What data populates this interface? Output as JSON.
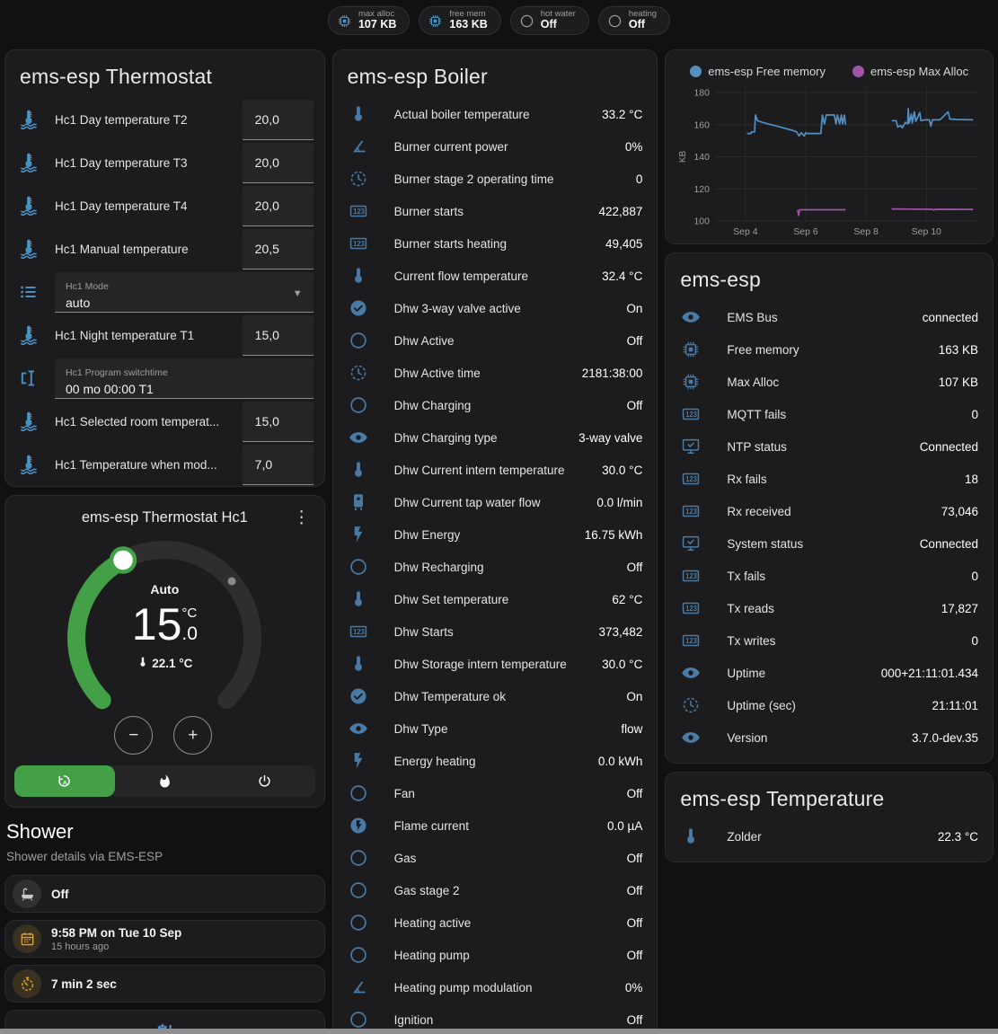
{
  "colors": {
    "accent_green": "#43a047",
    "icon_blue": "#4a7ba6",
    "thermostat_icon_blue": "#4b90c4",
    "badge_chip_blue": "#33a1e0",
    "amber": "#dfa431",
    "snowflake_blue": "#5590c8",
    "track_gray": "#2e2e2e"
  },
  "top_badges": [
    {
      "label": "max alloc",
      "value": "107 KB",
      "icon": "chip",
      "icon_color": "#33a1e0"
    },
    {
      "label": "free mem",
      "value": "163 KB",
      "icon": "chip",
      "icon_color": "#33a1e0"
    },
    {
      "label": "hot water",
      "value": "Off",
      "icon": "circle-outline",
      "icon_color": "#9a9a9a"
    },
    {
      "label": "heating",
      "value": "Off",
      "icon": "circle-outline",
      "icon_color": "#9a9a9a"
    }
  ],
  "thermostat": {
    "title": "ems-esp Thermostat",
    "rows": [
      {
        "type": "number",
        "icon": "thermometer-water",
        "label": "Hc1 Day temperature T2",
        "value": "20,0"
      },
      {
        "type": "number",
        "icon": "thermometer-water",
        "label": "Hc1 Day temperature T3",
        "value": "20,0"
      },
      {
        "type": "number",
        "icon": "thermometer-water",
        "label": "Hc1 Day temperature T4",
        "value": "20,0"
      },
      {
        "type": "number",
        "icon": "thermometer-water",
        "label": "Hc1 Manual temperature",
        "value": "20,5"
      },
      {
        "type": "select",
        "icon": "format-list",
        "label": "Hc1 Mode",
        "value": "auto"
      },
      {
        "type": "number",
        "icon": "thermometer-water",
        "label": "Hc1 Night temperature T1",
        "value": "15,0"
      },
      {
        "type": "text",
        "icon": "valve",
        "label": "Hc1 Program switchtime",
        "value": "00 mo 00:00 T1"
      },
      {
        "type": "number",
        "icon": "thermometer-water",
        "label": "Hc1 Selected room temperat...",
        "value": "15,0"
      },
      {
        "type": "number",
        "icon": "thermometer-water",
        "label": "Hc1 Temperature when mod...",
        "value": "7,0"
      }
    ]
  },
  "dial": {
    "title": "ems-esp Thermostat Hc1",
    "mode_label": "Auto",
    "target_main": "15",
    "target_frac": ".0",
    "target_unit": "°C",
    "current": "22.1 °C",
    "minus_label": "−",
    "plus_label": "+",
    "modes": [
      {
        "name": "auto",
        "icon": "auto",
        "selected": true
      },
      {
        "name": "heat",
        "icon": "flame",
        "selected": false
      },
      {
        "name": "off",
        "icon": "power",
        "selected": false
      }
    ]
  },
  "shower": {
    "title": "Shower",
    "subtitle": "Shower details via EMS-ESP",
    "tiles": [
      {
        "icon": "bathtub",
        "icon_color": "#c9c9c9",
        "icon_bg": "rgba(170,170,170,0.14)",
        "primary": "Off"
      },
      {
        "icon": "calendar",
        "icon_color": "#dfa431",
        "icon_bg": "rgba(223,164,49,0.16)",
        "primary": "9:58 PM on Tue 10 Sep",
        "secondary": "15 hours ago"
      },
      {
        "icon": "timer",
        "icon_color": "#dfa431",
        "icon_bg": "rgba(223,164,49,0.16)",
        "primary": "7 min 2 sec"
      },
      {
        "icon": "snowflake-alert",
        "icon_color": "#5590c8",
        "center": true
      }
    ]
  },
  "boiler": {
    "title": "ems-esp Boiler",
    "rows": [
      {
        "icon": "thermometer",
        "label": "Actual boiler temperature",
        "value": "33.2 °C"
      },
      {
        "icon": "angle-acute",
        "label": "Burner current power",
        "value": "0%"
      },
      {
        "icon": "clock",
        "label": "Burner stage 2 operating time",
        "value": "0"
      },
      {
        "icon": "counter",
        "label": "Burner starts",
        "value": "422,887"
      },
      {
        "icon": "counter",
        "label": "Burner starts heating",
        "value": "49,405"
      },
      {
        "icon": "thermometer",
        "label": "Current flow temperature",
        "value": "32.4 °C"
      },
      {
        "icon": "check-circle",
        "label": "Dhw 3-way valve active",
        "value": "On"
      },
      {
        "icon": "circle-outline",
        "label": "Dhw Active",
        "value": "Off"
      },
      {
        "icon": "clock",
        "label": "Dhw Active time",
        "value": "2181:38:00"
      },
      {
        "icon": "circle-outline",
        "label": "Dhw Charging",
        "value": "Off"
      },
      {
        "icon": "eye",
        "label": "Dhw Charging type",
        "value": "3-way valve"
      },
      {
        "icon": "thermometer",
        "label": "Dhw Current intern temperature",
        "value": "30.0 °C"
      },
      {
        "icon": "water-boiler",
        "label": "Dhw Current tap water flow",
        "value": "0.0 l/min"
      },
      {
        "icon": "flash",
        "label": "Dhw Energy",
        "value": "16.75 kWh"
      },
      {
        "icon": "circle-outline",
        "label": "Dhw Recharging",
        "value": "Off"
      },
      {
        "icon": "thermometer",
        "label": "Dhw Set temperature",
        "value": "62 °C"
      },
      {
        "icon": "counter",
        "label": "Dhw Starts",
        "value": "373,482"
      },
      {
        "icon": "thermometer",
        "label": "Dhw Storage intern temperature",
        "value": "30.0 °C"
      },
      {
        "icon": "check-circle",
        "label": "Dhw Temperature ok",
        "value": "On"
      },
      {
        "icon": "eye",
        "label": "Dhw Type",
        "value": "flow"
      },
      {
        "icon": "flash",
        "label": "Energy heating",
        "value": "0.0 kWh"
      },
      {
        "icon": "circle-outline",
        "label": "Fan",
        "value": "Off"
      },
      {
        "icon": "flash-circle",
        "label": "Flame current",
        "value": "0.0 µA"
      },
      {
        "icon": "circle-outline",
        "label": "Gas",
        "value": "Off"
      },
      {
        "icon": "circle-outline",
        "label": "Gas stage 2",
        "value": "Off"
      },
      {
        "icon": "circle-outline",
        "label": "Heating active",
        "value": "Off"
      },
      {
        "icon": "circle-outline",
        "label": "Heating pump",
        "value": "Off"
      },
      {
        "icon": "angle-acute",
        "label": "Heating pump modulation",
        "value": "0%"
      },
      {
        "icon": "circle-outline",
        "label": "Ignition",
        "value": "Off"
      }
    ]
  },
  "emsesp": {
    "title": "ems-esp",
    "rows": [
      {
        "icon": "eye",
        "label": "EMS Bus",
        "value": "connected"
      },
      {
        "icon": "chip",
        "label": "Free memory",
        "value": "163 KB"
      },
      {
        "icon": "chip",
        "label": "Max Alloc",
        "value": "107 KB"
      },
      {
        "icon": "counter",
        "label": "MQTT fails",
        "value": "0"
      },
      {
        "icon": "monitor-check",
        "label": "NTP status",
        "value": "Connected"
      },
      {
        "icon": "counter",
        "label": "Rx fails",
        "value": "18"
      },
      {
        "icon": "counter",
        "label": "Rx received",
        "value": "73,046"
      },
      {
        "icon": "monitor-check",
        "label": "System status",
        "value": "Connected"
      },
      {
        "icon": "counter",
        "label": "Tx fails",
        "value": "0"
      },
      {
        "icon": "counter",
        "label": "Tx reads",
        "value": "17,827"
      },
      {
        "icon": "counter",
        "label": "Tx writes",
        "value": "0"
      },
      {
        "icon": "eye",
        "label": "Uptime",
        "value": "000+21:11:01.434"
      },
      {
        "icon": "clock",
        "label": "Uptime (sec)",
        "value": "21:11:01"
      },
      {
        "icon": "eye",
        "label": "Version",
        "value": "3.7.0-dev.35"
      }
    ]
  },
  "temperature": {
    "title": "ems-esp Temperature",
    "rows": [
      {
        "icon": "thermometer",
        "label": "Zolder",
        "value": "22.3 °C"
      }
    ]
  },
  "chart_data": {
    "type": "line",
    "ylabel": "KB",
    "grid": true,
    "legend_position": "top",
    "xlim": [
      3.05,
      11.75
    ],
    "ylim": [
      100,
      180
    ],
    "y_ticks": [
      180,
      160,
      140,
      120,
      100
    ],
    "x_ticks": [
      {
        "day": 4,
        "label": "Sep 4"
      },
      {
        "day": 6,
        "label": "Sep 6"
      },
      {
        "day": 8,
        "label": "Sep 8"
      },
      {
        "day": 10,
        "label": "Sep 10"
      }
    ],
    "series": [
      {
        "name": "ems-esp Free memory",
        "color": "#548fc2",
        "points": [
          [
            4.05,
            154.5
          ],
          [
            4.18,
            154.5
          ],
          [
            4.2,
            155.5
          ],
          [
            4.3,
            155.5
          ],
          [
            4.33,
            166
          ],
          [
            4.4,
            162.5
          ],
          [
            4.55,
            161.5
          ],
          [
            4.75,
            160.5
          ],
          [
            4.95,
            159.5
          ],
          [
            5.15,
            158.5
          ],
          [
            5.35,
            157.5
          ],
          [
            5.55,
            156.5
          ],
          [
            5.7,
            155.5
          ],
          [
            5.78,
            153
          ],
          [
            5.85,
            155
          ],
          [
            5.95,
            153
          ],
          [
            6.0,
            155
          ],
          [
            6.05,
            154.5
          ],
          [
            6.5,
            154.5
          ],
          [
            6.55,
            166
          ],
          [
            6.62,
            160.5
          ],
          [
            6.68,
            166
          ],
          [
            6.95,
            166
          ],
          [
            7.0,
            160.5
          ],
          [
            7.05,
            166
          ],
          [
            7.12,
            160.5
          ],
          [
            7.18,
            166
          ],
          [
            7.22,
            160.5
          ],
          [
            7.28,
            166
          ],
          [
            7.32,
            160
          ],
          null,
          [
            8.85,
            162.5
          ],
          [
            9.0,
            162.5
          ],
          [
            9.05,
            158.5
          ],
          [
            9.15,
            159.5
          ],
          [
            9.2,
            158
          ],
          [
            9.3,
            161.5
          ],
          [
            9.38,
            160.5
          ],
          [
            9.4,
            170
          ],
          [
            9.43,
            161
          ],
          [
            9.5,
            166.5
          ],
          [
            9.53,
            161
          ],
          [
            9.6,
            168
          ],
          [
            9.65,
            162
          ],
          [
            9.78,
            167.5
          ],
          [
            9.82,
            162.5
          ],
          [
            9.95,
            163
          ],
          [
            10.1,
            163
          ],
          [
            10.15,
            159
          ],
          [
            10.2,
            163
          ],
          [
            10.45,
            163
          ],
          [
            10.72,
            168
          ],
          [
            10.78,
            163.5
          ],
          [
            11.0,
            163.2
          ],
          [
            11.55,
            163
          ]
        ]
      },
      {
        "name": "ems-esp Max Alloc",
        "color": "#a254a8",
        "points": [
          [
            5.73,
            107
          ],
          [
            5.76,
            103.5
          ],
          [
            5.8,
            107
          ],
          [
            7.32,
            107
          ],
          null,
          [
            8.85,
            107.5
          ],
          [
            10.2,
            107.3
          ],
          [
            10.25,
            106.8
          ],
          [
            10.3,
            107.3
          ],
          [
            11.55,
            107.2
          ]
        ]
      }
    ]
  }
}
